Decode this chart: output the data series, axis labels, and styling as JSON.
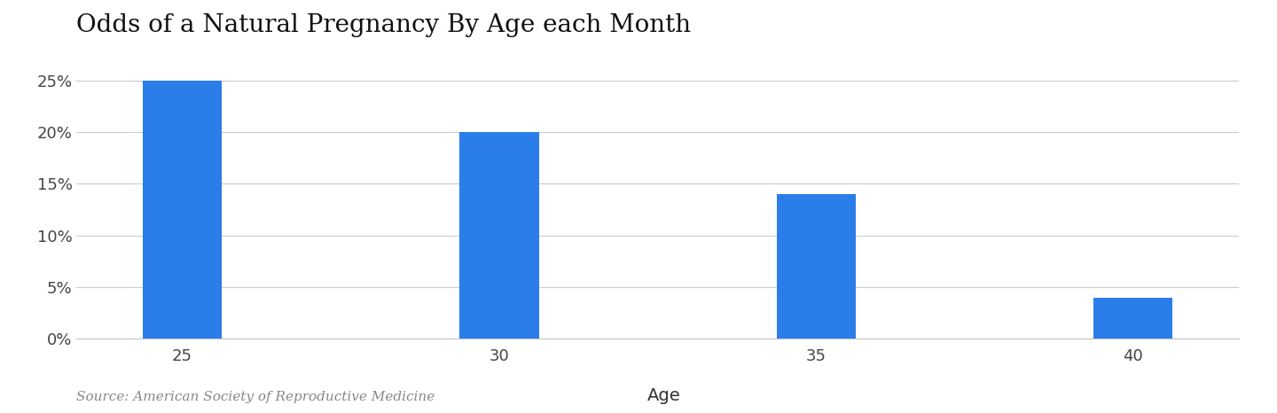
{
  "title": "Odds of a Natural Pregnancy By Age each Month",
  "categories": [
    "25",
    "30",
    "35",
    "40"
  ],
  "values": [
    0.25,
    0.2,
    0.14,
    0.04
  ],
  "bar_color": "#2B7DE9",
  "background_color": "#ffffff",
  "xlabel": "Age",
  "ylim": [
    0,
    0.28
  ],
  "yticks": [
    0.0,
    0.05,
    0.1,
    0.15,
    0.2,
    0.25
  ],
  "ytick_labels": [
    "0%",
    "5%",
    "10%",
    "15%",
    "20%",
    "25%"
  ],
  "title_fontsize": 20,
  "tick_fontsize": 13,
  "xlabel_fontsize": 14,
  "source_text": "Source: American Society of Reproductive Medicine",
  "source_fontsize": 11,
  "grid_color": "#cccccc",
  "bar_width": 0.45,
  "bar_spacing": 1.8
}
